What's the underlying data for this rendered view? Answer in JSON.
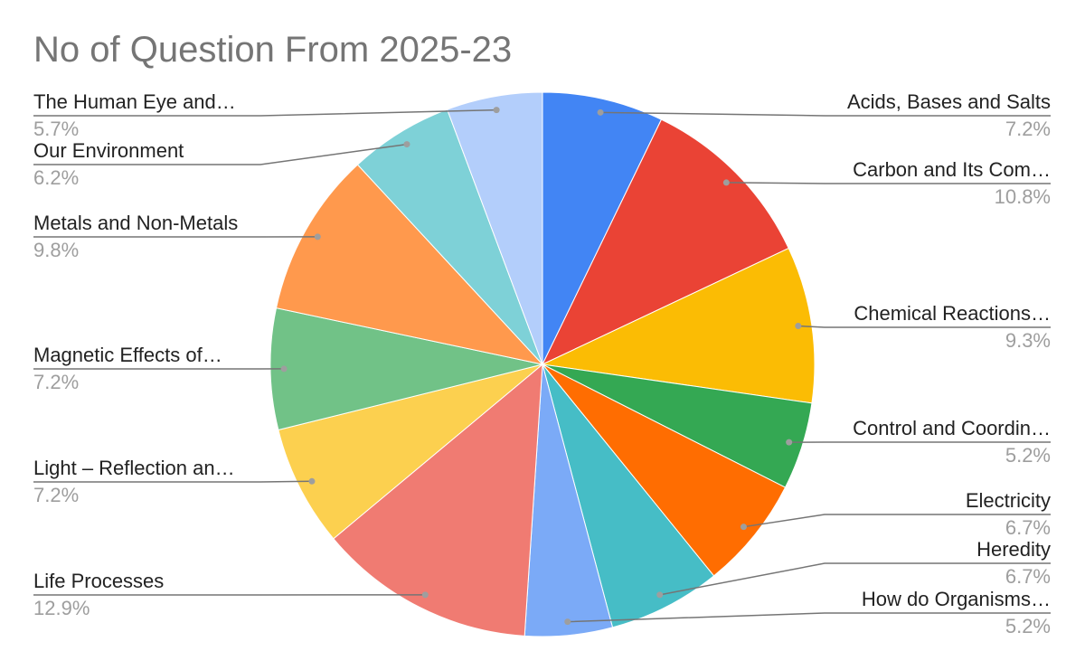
{
  "chart_data": {
    "type": "pie",
    "title": "No of Question From 2025-23",
    "categories": [
      "Acids, Bases and Salts",
      "Carbon and Its Com…",
      "Chemical Reactions…",
      "Control and Coordin…",
      "Electricity",
      "Heredity",
      "How do Organisms…",
      "Life Processes",
      "Light – Reflection an…",
      "Magnetic Effects of…",
      "Metals and Non-Metals",
      "Our Environment",
      "The Human Eye and…"
    ],
    "values": [
      7.2,
      10.8,
      9.3,
      5.2,
      6.7,
      6.7,
      5.2,
      12.9,
      7.2,
      7.2,
      9.8,
      6.2,
      5.7
    ],
    "value_labels": [
      "7.2%",
      "10.8%",
      "9.3%",
      "5.2%",
      "6.7%",
      "6.7%",
      "5.2%",
      "12.9%",
      "7.2%",
      "7.2%",
      "9.8%",
      "6.2%",
      "5.7%"
    ],
    "colors": [
      "#4285f4",
      "#ea4335",
      "#fbbc04",
      "#34a853",
      "#ff6d01",
      "#46bdc6",
      "#7baaf7",
      "#f07b72",
      "#fcd04f",
      "#71c287",
      "#ff994d",
      "#7ed1d7",
      "#b3cefb"
    ]
  }
}
